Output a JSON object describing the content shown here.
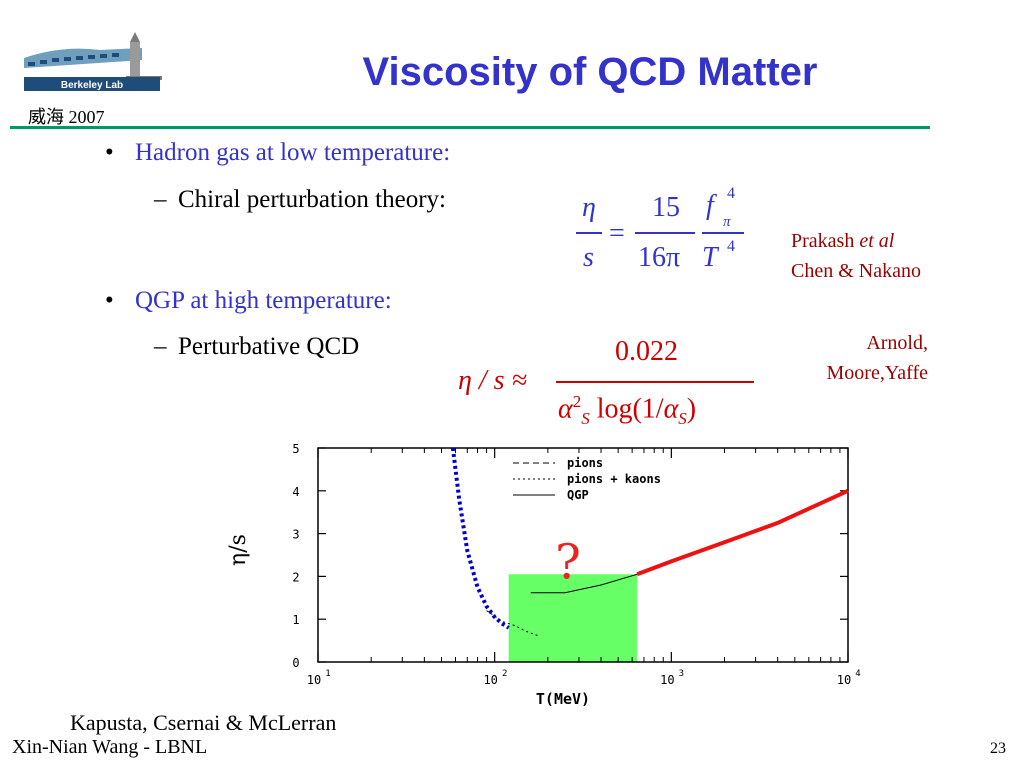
{
  "header": {
    "title": "Viscosity of QCD Matter",
    "subtitle": "威海 2007",
    "logo_text": "Berkeley Lab"
  },
  "bullets": [
    {
      "text": "Hadron gas at low temperature:",
      "sub": "Chiral perturbation theory:"
    },
    {
      "text": "QGP at high temperature:",
      "sub": "Perturbative QCD"
    }
  ],
  "formula1": {
    "lhs_num": "η",
    "lhs_den": "s",
    "eq": "=",
    "num": "15",
    "den": "16π",
    "f": "f",
    "f_sup": "4",
    "f_sub": "π",
    "T": "T",
    "T_sup": "4"
  },
  "formula2": {
    "lhs": "η / s ≈",
    "num": "0.022",
    "den_alpha": "α",
    "den_sub": "S",
    "den_sup": "2",
    "den_log": " log(1/",
    "den_alpha2": "α",
    "den_sub2": "S",
    "den_close": ")"
  },
  "references": {
    "prakash_name": "Prakash ",
    "prakash_etal": "et al",
    "chen": "Chen & Nakano",
    "arnold_line1": "Arnold,",
    "arnold_line2": "Moore,Yaffe"
  },
  "chart_data": {
    "type": "line",
    "xscale": "log",
    "xlim": [
      10,
      10000
    ],
    "ylim": [
      0,
      5
    ],
    "xlabel": "T(MeV)",
    "ylabel": "η/s",
    "x_ticks": [
      "10",
      "10",
      "10",
      "10"
    ],
    "x_tick_exps": [
      "1",
      "2",
      "3",
      "4"
    ],
    "y_ticks": [
      "0",
      "1",
      "2",
      "3",
      "4",
      "5"
    ],
    "legend": [
      "pions",
      "pions + kaons",
      "QGP"
    ],
    "annotation": "?",
    "highlight": {
      "x": [
        120,
        640
      ],
      "y": [
        0,
        2.05
      ],
      "color": "#66ff66"
    },
    "series": [
      {
        "name": "pions",
        "style": "dashed-blue",
        "x": [
          58,
          63,
          70,
          80,
          90,
          100,
          110,
          120
        ],
        "y": [
          5,
          3.8,
          2.6,
          1.75,
          1.3,
          1.05,
          0.9,
          0.8
        ]
      },
      {
        "name": "pions + kaons",
        "style": "dotted",
        "x": [
          90,
          110,
          130,
          150,
          180
        ],
        "y": [
          1.2,
          0.95,
          0.85,
          0.72,
          0.6
        ]
      },
      {
        "name": "QGP",
        "style": "solid-thin",
        "x": [
          160,
          250,
          400,
          640
        ],
        "y": [
          1.62,
          1.62,
          1.8,
          2.05
        ]
      },
      {
        "name": "QGP",
        "style": "solid-red",
        "x": [
          640,
          1000,
          2000,
          4000,
          10000
        ],
        "y": [
          2.05,
          2.35,
          2.8,
          3.25,
          4.0
        ]
      }
    ]
  },
  "footer": {
    "credit": "Kapusta, Csernai & McLerran",
    "author": "Xin-Nian Wang - LBNL",
    "page": "23"
  },
  "colors": {
    "title": "#3333cc",
    "rule": "#009966",
    "red_ref": "#990000",
    "formula2": "#cc0000"
  }
}
